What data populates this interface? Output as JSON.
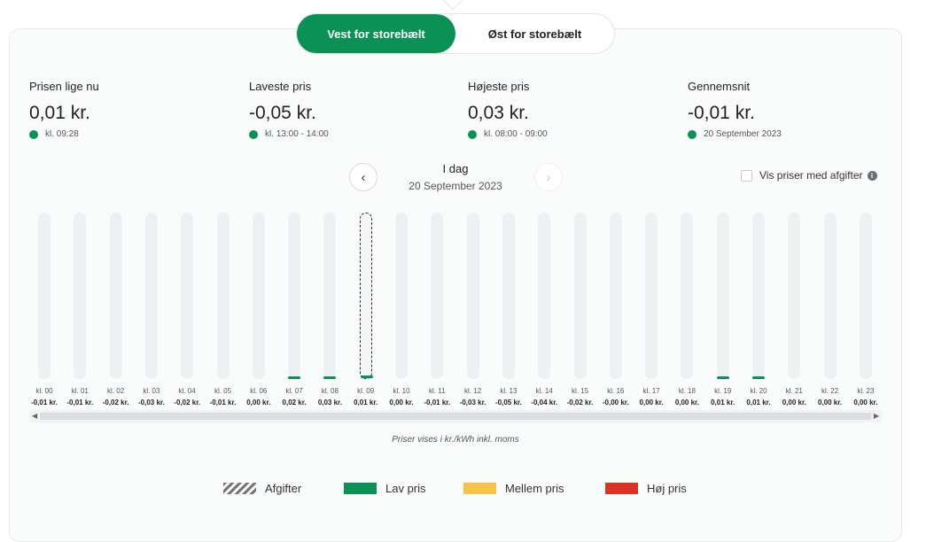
{
  "toggle": {
    "west_label": "Vest for storebælt",
    "east_label": "Øst for storebælt"
  },
  "stats": [
    {
      "label": "Prisen lige nu",
      "value": "0,01 kr.",
      "sub": "kl. 09:28"
    },
    {
      "label": "Laveste pris",
      "value": "-0,05 kr.",
      "sub": "kl. 13:00 - 14:00"
    },
    {
      "label": "Højeste pris",
      "value": "0,03 kr.",
      "sub": "kl. 08:00 - 09:00"
    },
    {
      "label": "Gennemsnit",
      "value": "-0,01 kr.",
      "sub": "20 September 2023"
    }
  ],
  "day": {
    "label": "I dag",
    "date": "20 September 2023",
    "prev_icon": "chevron-left-icon",
    "next_icon": "chevron-right-icon"
  },
  "fees_checkbox_label": "Vis priser med afgifter",
  "chart_data": {
    "type": "bar",
    "categories": [
      "kl. 00",
      "kl. 01",
      "kl. 02",
      "kl. 03",
      "kl. 04",
      "kl. 05",
      "kl. 06",
      "kl. 07",
      "kl. 08",
      "kl. 09",
      "kl. 10",
      "kl. 11",
      "kl. 12",
      "kl. 13",
      "kl. 14",
      "kl. 15",
      "kl. 16",
      "kl. 17",
      "kl. 18",
      "kl. 19",
      "kl. 20",
      "kl. 21",
      "kl. 22",
      "kl. 23"
    ],
    "value_labels": [
      "-0,01 kr.",
      "-0,01 kr.",
      "-0,02 kr.",
      "-0,03 kr.",
      "-0,02 kr.",
      "-0,01 kr.",
      "0,00 kr.",
      "0,02 kr.",
      "0,03 kr.",
      "0,01 kr.",
      "0,00 kr.",
      "-0,01 kr.",
      "-0,03 kr.",
      "-0,05 kr.",
      "-0,04 kr.",
      "-0,02 kr.",
      "-0,00 kr.",
      "0,00 kr.",
      "0,00 kr.",
      "0,01 kr.",
      "0,01 kr.",
      "0,00 kr.",
      "0,00 kr.",
      "0,00 kr."
    ],
    "values": [
      -0.01,
      -0.01,
      -0.02,
      -0.03,
      -0.02,
      -0.01,
      0.0,
      0.02,
      0.03,
      0.01,
      0.0,
      -0.01,
      -0.03,
      -0.05,
      -0.04,
      -0.02,
      -0.0,
      0.0,
      0.0,
      0.01,
      0.01,
      0.0,
      0.0,
      0.0
    ],
    "current_hour_index": 9,
    "unit": "kr./kWh",
    "colors": {
      "low": "#0b9156",
      "medium": "#f8c446",
      "high": "#dc3226",
      "track": "#eff0f3"
    }
  },
  "note": "Priser vises i kr./kWh inkl. moms",
  "legend": [
    {
      "label": "Afgifter",
      "kind": "hatch"
    },
    {
      "label": "Lav pris",
      "color": "#0b9156"
    },
    {
      "label": "Mellem pris",
      "color": "#f8c446"
    },
    {
      "label": "Høj pris",
      "color": "#dc3226"
    }
  ]
}
